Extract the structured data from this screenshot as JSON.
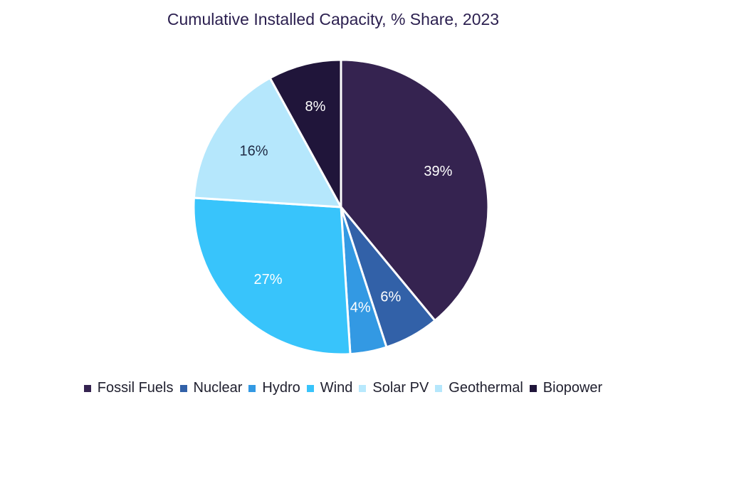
{
  "chart_data": {
    "type": "pie",
    "title": "Cumulative Installed Capacity, % Share, 2023",
    "slices": [
      {
        "name": "Fossil Fuels",
        "value": 39,
        "label": "39%",
        "color": "#352350"
      },
      {
        "name": "Nuclear",
        "value": 6,
        "label": "6%",
        "color": "#3261a8"
      },
      {
        "name": "Hydro",
        "value": 4,
        "label": "4%",
        "color": "#3399e3"
      },
      {
        "name": "Wind",
        "value": 27,
        "label": "27%",
        "color": "#38c4fb"
      },
      {
        "name": "Solar PV",
        "value": 0,
        "label": "",
        "color": "#b8e9fd"
      },
      {
        "name": "Geothermal",
        "value": 16,
        "label": "16%",
        "color": "#b5e7fc"
      },
      {
        "name": "Biopower",
        "value": 8,
        "label": "8%",
        "color": "#20153a"
      }
    ],
    "legend_position": "bottom"
  }
}
